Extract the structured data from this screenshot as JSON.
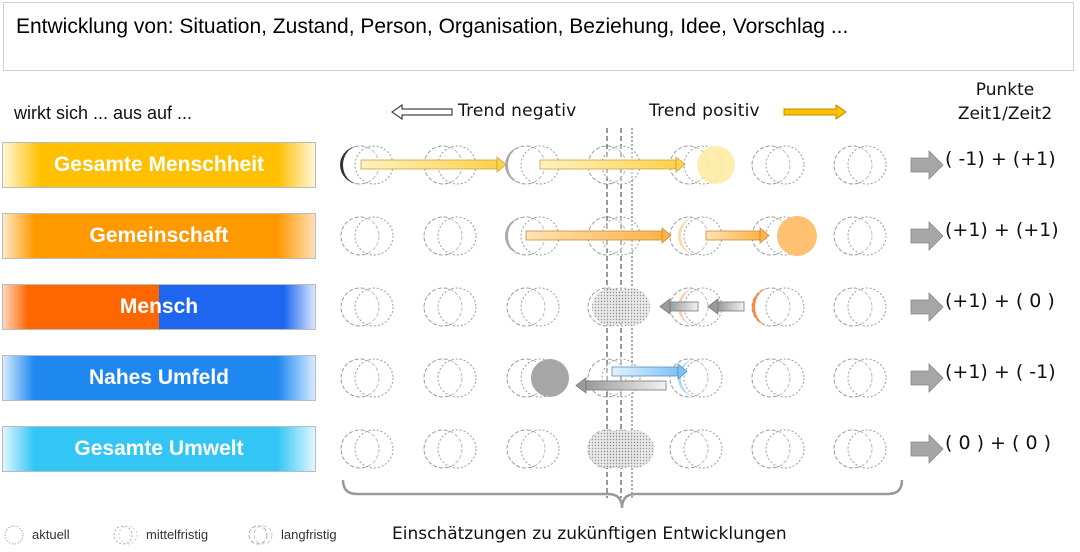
{
  "title": "Entwicklung von: Situation, Zustand, Person, Organisation, Beziehung, Idee, Vorschlag ...",
  "headers": {
    "left": "wirkt sich ... aus auf ...",
    "trend_negative": "Trend negativ",
    "trend_positive": "Trend positiv",
    "points_line1": "Punkte",
    "points_line2": "Zeit1/Zeit2"
  },
  "rows": [
    {
      "label": "Gesamte Menschheit",
      "score": "( -1) + (+1)"
    },
    {
      "label": "Gemeinschaft",
      "score": "(+1) + (+1)"
    },
    {
      "label": "Mensch",
      "score": "(+1) + ( 0 )"
    },
    {
      "label": "Nahes Umfeld",
      "score": "(+1) + ( -1)"
    },
    {
      "label": "Gesamte Umwelt",
      "score": "( 0 ) + ( 0 )"
    }
  ],
  "brace_label": "Einschätzungen zu zukünftigen Entwicklungen",
  "legend": {
    "current": "aktuell",
    "medium_term": "mittelfristig",
    "long_term": "langfristig"
  },
  "colors": {
    "yellow": "#ffc000",
    "orange": "#ff9900",
    "dark_orange": "#ff6600",
    "blue": "#1e7bf0",
    "light_blue": "#44c8f5",
    "grey": "#999999"
  }
}
